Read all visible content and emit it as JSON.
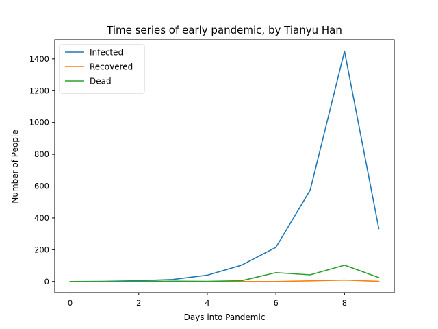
{
  "chart_data": {
    "type": "line",
    "title": "Time series of early pandemic, by Tianyu Han",
    "xlabel": "Days into Pandemic",
    "ylabel": "Number of People",
    "x": [
      0,
      1,
      2,
      3,
      4,
      5,
      6,
      7,
      8,
      9
    ],
    "xlim": [
      -0.45,
      9.45
    ],
    "ylim": [
      -70,
      1520
    ],
    "xticks": [
      0,
      2,
      4,
      6,
      8
    ],
    "yticks": [
      0,
      200,
      400,
      600,
      800,
      1000,
      1200,
      1400
    ],
    "grid": false,
    "legend_position": "top-left",
    "series": [
      {
        "name": "Infected",
        "color": "#1f77b4",
        "values": [
          0,
          1,
          5,
          13,
          40,
          103,
          215,
          575,
          1448,
          333
        ]
      },
      {
        "name": "Recovered",
        "color": "#ff7f0e",
        "values": [
          0,
          0,
          0,
          0,
          0,
          0,
          0,
          4,
          9,
          1
        ]
      },
      {
        "name": "Dead",
        "color": "#2ca02c",
        "values": [
          0,
          0,
          1,
          2,
          1,
          5,
          56,
          42,
          103,
          25
        ]
      }
    ]
  }
}
